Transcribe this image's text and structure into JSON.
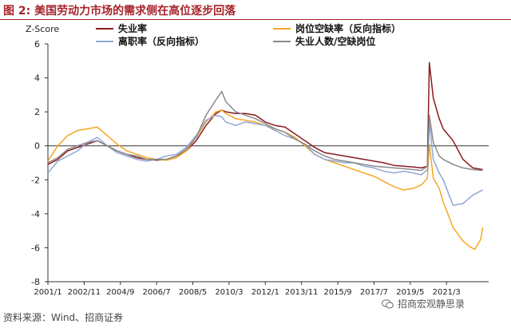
{
  "figure": {
    "title": "图 2:  美国劳动力市场的需求侧在高位逐步回落",
    "source": "资料来源：Wind、招商证券",
    "watermark": "招商宏观静思录"
  },
  "chart_data": {
    "type": "line",
    "ylabel": "Z-Score",
    "ylim": [
      -8,
      6
    ],
    "yticks": [
      -8,
      -6,
      -4,
      -2,
      0,
      2,
      4,
      6
    ],
    "xlim": [
      2001.0,
      2023.3
    ],
    "xtick_labels": [
      "2001/1",
      "2002/11",
      "2004/9",
      "2006/7",
      "2008/5",
      "2010/3",
      "2012/1",
      "2013/11",
      "2015/9",
      "2017/7",
      "2019/5",
      "2021/3"
    ],
    "xtick_pos": [
      2001.0,
      2002.833,
      2004.667,
      2006.5,
      2008.333,
      2010.167,
      2012.0,
      2013.833,
      2015.667,
      2017.5,
      2019.333,
      2021.167
    ],
    "legend_position": "top",
    "series": [
      {
        "name": "失业率",
        "color": "#8b1a1f",
        "x": [
          2001.0,
          2001.5,
          2002.0,
          2002.5,
          2003.0,
          2003.5,
          2004.0,
          2004.5,
          2005.0,
          2005.5,
          2006.0,
          2006.5,
          2007.0,
          2007.5,
          2008.0,
          2008.5,
          2009.0,
          2009.5,
          2009.8,
          2010.0,
          2010.5,
          2011.0,
          2011.5,
          2012.0,
          2012.5,
          2013.0,
          2013.5,
          2014.0,
          2014.5,
          2015.0,
          2015.5,
          2016.0,
          2016.5,
          2017.0,
          2017.5,
          2018.0,
          2018.5,
          2019.0,
          2019.5,
          2019.9,
          2020.2,
          2020.3,
          2020.5,
          2020.8,
          2021.0,
          2021.5,
          2022.0,
          2022.5,
          2023.0
        ],
        "values": [
          -1.1,
          -0.8,
          -0.3,
          -0.1,
          0.1,
          0.3,
          0.0,
          -0.3,
          -0.5,
          -0.7,
          -0.8,
          -0.85,
          -0.8,
          -0.6,
          -0.3,
          0.3,
          1.2,
          1.9,
          2.1,
          2.0,
          1.9,
          1.9,
          1.8,
          1.4,
          1.2,
          1.1,
          0.7,
          0.3,
          -0.1,
          -0.4,
          -0.5,
          -0.6,
          -0.7,
          -0.8,
          -0.9,
          -1.0,
          -1.15,
          -1.2,
          -1.25,
          -1.3,
          -1.2,
          4.9,
          2.8,
          1.6,
          1.0,
          0.3,
          -0.8,
          -1.3,
          -1.4
        ]
      },
      {
        "name": "岗位空缺率（反向指标）",
        "color": "#f5a623",
        "x": [
          2001.0,
          2001.5,
          2002.0,
          2002.5,
          2003.0,
          2003.5,
          2004.0,
          2004.5,
          2005.0,
          2005.5,
          2006.0,
          2006.5,
          2007.0,
          2007.5,
          2008.0,
          2008.5,
          2009.0,
          2009.5,
          2009.8,
          2010.0,
          2010.5,
          2011.0,
          2011.5,
          2012.0,
          2012.5,
          2013.0,
          2013.5,
          2014.0,
          2014.5,
          2015.0,
          2015.5,
          2016.0,
          2016.5,
          2017.0,
          2017.5,
          2018.0,
          2018.5,
          2019.0,
          2019.5,
          2019.9,
          2020.2,
          2020.3,
          2020.5,
          2020.8,
          2021.0,
          2021.5,
          2022.0,
          2022.3,
          2022.6,
          2022.9,
          2023.0
        ],
        "values": [
          -0.9,
          0.0,
          0.6,
          0.9,
          1.0,
          1.1,
          0.6,
          0.1,
          -0.3,
          -0.5,
          -0.7,
          -0.8,
          -0.85,
          -0.7,
          -0.3,
          0.5,
          1.4,
          2.0,
          2.1,
          1.9,
          1.6,
          1.5,
          1.4,
          1.2,
          1.0,
          0.8,
          0.5,
          0.0,
          -0.5,
          -0.8,
          -1.0,
          -1.2,
          -1.4,
          -1.6,
          -1.8,
          -2.1,
          -2.4,
          -2.6,
          -2.5,
          -2.3,
          -1.9,
          0.1,
          -1.9,
          -2.5,
          -3.3,
          -4.8,
          -5.6,
          -5.9,
          -6.1,
          -5.5,
          -4.8
        ]
      },
      {
        "name": "离职率（反向指标）",
        "color": "#8fa8d8",
        "x": [
          2001.0,
          2001.5,
          2002.0,
          2002.5,
          2003.0,
          2003.5,
          2004.0,
          2004.5,
          2005.0,
          2005.5,
          2006.0,
          2006.5,
          2007.0,
          2007.5,
          2008.0,
          2008.5,
          2009.0,
          2009.5,
          2009.8,
          2010.0,
          2010.5,
          2011.0,
          2011.5,
          2012.0,
          2012.5,
          2013.0,
          2013.5,
          2014.0,
          2014.5,
          2015.0,
          2015.5,
          2016.0,
          2016.5,
          2017.0,
          2017.5,
          2018.0,
          2018.5,
          2019.0,
          2019.5,
          2019.9,
          2020.2,
          2020.3,
          2020.5,
          2020.8,
          2021.0,
          2021.5,
          2022.0,
          2022.5,
          2023.0
        ],
        "values": [
          -1.6,
          -0.9,
          -0.6,
          -0.3,
          0.2,
          0.5,
          0.0,
          -0.4,
          -0.6,
          -0.8,
          -0.9,
          -0.8,
          -0.6,
          -0.5,
          -0.1,
          0.6,
          1.5,
          1.8,
          1.7,
          1.4,
          1.2,
          1.4,
          1.3,
          1.2,
          0.9,
          0.6,
          0.4,
          0.1,
          -0.5,
          -0.8,
          -0.9,
          -1.0,
          -1.0,
          -1.2,
          -1.3,
          -1.5,
          -1.6,
          -1.5,
          -1.6,
          -1.7,
          -1.4,
          1.4,
          -0.8,
          -1.6,
          -2.0,
          -3.5,
          -3.4,
          -2.9,
          -2.6
        ]
      },
      {
        "name": "失业人数/空缺岗位",
        "color": "#8a8a8a",
        "x": [
          2001.0,
          2001.5,
          2002.0,
          2002.5,
          2003.0,
          2003.5,
          2004.0,
          2004.5,
          2005.0,
          2005.5,
          2006.0,
          2006.5,
          2007.0,
          2007.5,
          2008.0,
          2008.5,
          2009.0,
          2009.5,
          2009.8,
          2010.0,
          2010.5,
          2011.0,
          2011.5,
          2012.0,
          2012.5,
          2013.0,
          2013.5,
          2014.0,
          2014.5,
          2015.0,
          2015.5,
          2016.0,
          2016.5,
          2017.0,
          2017.5,
          2018.0,
          2018.5,
          2019.0,
          2019.5,
          2019.9,
          2020.2,
          2020.3,
          2020.5,
          2020.8,
          2021.0,
          2021.5,
          2022.0,
          2022.5,
          2023.0
        ],
        "values": [
          -1.0,
          -0.7,
          -0.2,
          0.0,
          0.2,
          0.3,
          0.0,
          -0.3,
          -0.5,
          -0.6,
          -0.8,
          -0.8,
          -0.8,
          -0.6,
          -0.2,
          0.5,
          1.8,
          2.7,
          3.2,
          2.6,
          2.0,
          1.8,
          1.6,
          1.3,
          1.0,
          0.8,
          0.4,
          0.1,
          -0.3,
          -0.6,
          -0.8,
          -0.9,
          -1.0,
          -1.1,
          -1.2,
          -1.25,
          -1.3,
          -1.35,
          -1.4,
          -1.45,
          -1.2,
          1.8,
          0.2,
          -0.6,
          -0.8,
          -1.1,
          -1.3,
          -1.4,
          -1.45
        ]
      }
    ]
  }
}
